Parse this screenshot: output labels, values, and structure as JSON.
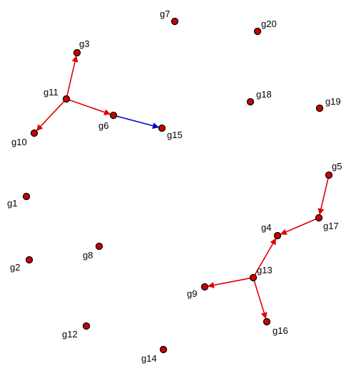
{
  "graph": {
    "colors": {
      "node_fill": "#cc0000",
      "node_stroke": "#000000",
      "edge_default": "#e00000",
      "edge_highlight": "#0000cc"
    },
    "nodes": [
      {
        "id": "g1",
        "label": "g1"
      },
      {
        "id": "g2",
        "label": "g2"
      },
      {
        "id": "g3",
        "label": "g3"
      },
      {
        "id": "g4",
        "label": "g4"
      },
      {
        "id": "g5",
        "label": "g5"
      },
      {
        "id": "g6",
        "label": "g6"
      },
      {
        "id": "g7",
        "label": "g7"
      },
      {
        "id": "g8",
        "label": "g8"
      },
      {
        "id": "g9",
        "label": "g9"
      },
      {
        "id": "g10",
        "label": "g10"
      },
      {
        "id": "g11",
        "label": "g11"
      },
      {
        "id": "g12",
        "label": "g12"
      },
      {
        "id": "g13",
        "label": "g13"
      },
      {
        "id": "g14",
        "label": "g14"
      },
      {
        "id": "g15",
        "label": "g15"
      },
      {
        "id": "g16",
        "label": "g16"
      },
      {
        "id": "g17",
        "label": "g17"
      },
      {
        "id": "g18",
        "label": "g18"
      },
      {
        "id": "g19",
        "label": "g19"
      },
      {
        "id": "g20",
        "label": "g20"
      }
    ],
    "edges": [
      {
        "source": "g11",
        "target": "g3",
        "color": "red"
      },
      {
        "source": "g11",
        "target": "g10",
        "color": "red"
      },
      {
        "source": "g11",
        "target": "g6",
        "color": "red"
      },
      {
        "source": "g6",
        "target": "g15",
        "color": "blue"
      },
      {
        "source": "g5",
        "target": "g17",
        "color": "red"
      },
      {
        "source": "g17",
        "target": "g4",
        "color": "red"
      },
      {
        "source": "g13",
        "target": "g4",
        "color": "red"
      },
      {
        "source": "g13",
        "target": "g9",
        "color": "red"
      },
      {
        "source": "g13",
        "target": "g16",
        "color": "red"
      }
    ]
  }
}
